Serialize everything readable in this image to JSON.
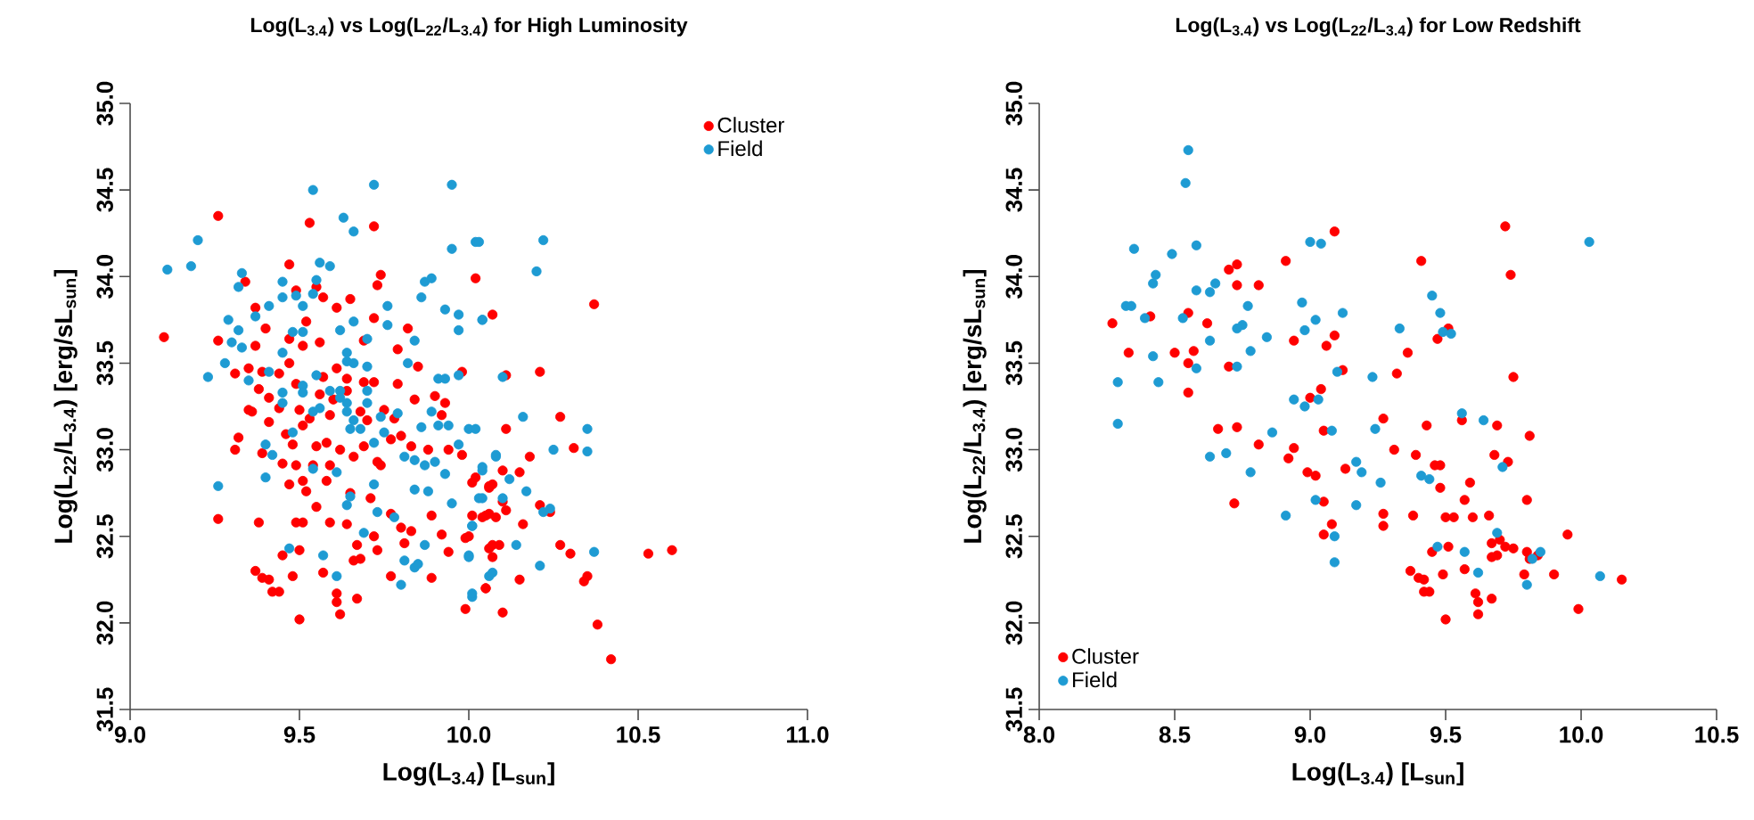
{
  "chart_data": [
    {
      "type": "scatter",
      "title": "Log(L$_{3.4}$) vs Log(L$_{22}$/L$_{3.4}$) for High Luminosity",
      "xlabel": "Log(L$_{3.4}$) [L$_{sun}$]",
      "ylabel": "Log(L$_{22}$/L$_{3.4}$) [erg/sL$_{sun}$]",
      "legend": "top right",
      "marker": "circle",
      "xlim": [
        9.0,
        11.0
      ],
      "ylim": [
        31.5,
        35.0
      ],
      "xticks": [
        {
          "value": 9.0,
          "label": "9.0"
        },
        {
          "value": 9.5,
          "label": "9.5"
        },
        {
          "value": 10.0,
          "label": "10.0"
        },
        {
          "value": 10.5,
          "label": "10.5"
        },
        {
          "value": 11.0,
          "label": "11.0"
        }
      ],
      "yticks": [
        {
          "value": 31.5,
          "label": "31.5"
        },
        {
          "value": 32.0,
          "label": "32.0"
        },
        {
          "value": 32.5,
          "label": "32.5"
        },
        {
          "value": 33.0,
          "label": "33.0"
        },
        {
          "value": 33.5,
          "label": "33.5"
        },
        {
          "value": 34.0,
          "label": "34.0"
        },
        {
          "value": 34.5,
          "label": "34.5"
        },
        {
          "value": 35.0,
          "label": "35.0"
        }
      ],
      "series": [
        {
          "name": "Cluster",
          "color": "#ff0000",
          "x": [
            9.26,
            9.1,
            9.53,
            9.72,
            9.47,
            9.74,
            9.34,
            9.73,
            9.49,
            9.55,
            9.65,
            9.57,
            9.37,
            9.61,
            9.52,
            9.4,
            9.26,
            9.72,
            10.02,
            10.07,
            9.98,
            9.47,
            9.51,
            9.56,
            9.69,
            9.79,
            9.82,
            9.37,
            9.31,
            9.35,
            9.39,
            9.44,
            9.47,
            9.38,
            9.41,
            9.49,
            9.57,
            9.61,
            9.64,
            9.56,
            9.6,
            9.64,
            9.69,
            9.72,
            9.79,
            9.84,
            9.9,
            9.92,
            9.93,
            9.85,
            9.35,
            9.36,
            9.44,
            9.5,
            9.53,
            9.59,
            9.68,
            9.7,
            9.75,
            9.78,
            9.32,
            9.31,
            9.39,
            9.41,
            9.46,
            9.48,
            9.51,
            9.55,
            9.58,
            9.62,
            9.66,
            9.69,
            9.73,
            9.77,
            9.8,
            9.83,
            9.88,
            9.94,
            9.98,
            9.45,
            9.49,
            9.54,
            9.59,
            9.51,
            9.47,
            9.58,
            9.52,
            9.55,
            9.59,
            9.64,
            9.65,
            9.71,
            9.74,
            9.77,
            9.8,
            9.83,
            9.89,
            9.92,
            9.94,
            9.99,
            10.01,
            10.06,
            10.05,
            10.07,
            10.05,
            9.99,
            9.81,
            9.77,
            9.89,
            9.26,
            9.38,
            9.49,
            9.51,
            9.45,
            9.5,
            9.67,
            9.72,
            9.73,
            9.66,
            9.68,
            9.37,
            9.39,
            9.41,
            9.42,
            9.44,
            9.48,
            9.57,
            9.61,
            9.61,
            9.62,
            9.67,
            9.5,
            10.37,
            10.11,
            10.21,
            10.27,
            10.11,
            10.31,
            10.18,
            10.15,
            10.1,
            10.02,
            10.06,
            10.07,
            10.1,
            10.11,
            10.01,
            10.04,
            10.06,
            10.08,
            10.21,
            10.24,
            10.16,
            10.0,
            10.06,
            10.09,
            10.07,
            10.27,
            10.3,
            10.15,
            10.35,
            10.34,
            10.05,
            10.1,
            10.53,
            10.6,
            10.38,
            10.42
          ],
          "values": [
            34.35,
            33.65,
            34.31,
            34.29,
            34.07,
            34.01,
            33.97,
            33.95,
            33.92,
            33.94,
            33.87,
            33.88,
            33.82,
            33.82,
            33.74,
            33.7,
            33.63,
            33.76,
            33.99,
            33.78,
            33.45,
            33.64,
            33.6,
            33.62,
            33.63,
            33.58,
            33.7,
            33.6,
            33.44,
            33.47,
            33.45,
            33.44,
            33.5,
            33.35,
            33.3,
            33.38,
            33.42,
            33.47,
            33.41,
            33.32,
            33.29,
            33.34,
            33.39,
            33.39,
            33.38,
            33.29,
            33.31,
            33.2,
            33.27,
            33.48,
            33.23,
            33.22,
            33.24,
            33.23,
            33.18,
            33.2,
            33.22,
            33.17,
            33.23,
            33.18,
            33.07,
            33.0,
            32.98,
            33.16,
            33.09,
            33.03,
            33.14,
            33.02,
            33.04,
            33.0,
            32.96,
            33.02,
            32.93,
            33.06,
            33.08,
            33.02,
            33.0,
            33.0,
            32.97,
            32.92,
            32.91,
            32.91,
            32.91,
            32.82,
            32.8,
            32.82,
            32.76,
            32.67,
            32.58,
            32.57,
            32.75,
            32.72,
            32.91,
            32.63,
            32.55,
            32.53,
            32.62,
            32.51,
            32.41,
            32.49,
            32.81,
            32.78,
            32.62,
            32.45,
            32.2,
            32.08,
            32.46,
            32.27,
            32.26,
            32.6,
            32.58,
            32.58,
            32.58,
            32.39,
            32.42,
            32.45,
            32.5,
            32.42,
            32.36,
            32.37,
            32.3,
            32.26,
            32.25,
            32.18,
            32.18,
            32.27,
            32.29,
            32.17,
            32.12,
            32.05,
            32.14,
            32.02,
            33.84,
            33.43,
            33.45,
            33.19,
            33.12,
            33.01,
            32.96,
            32.87,
            32.88,
            32.84,
            32.79,
            32.8,
            32.7,
            32.65,
            32.62,
            32.61,
            32.63,
            32.61,
            32.68,
            32.64,
            32.57,
            32.5,
            32.43,
            32.45,
            32.38,
            32.45,
            32.4,
            32.25,
            32.27,
            32.24,
            32.2,
            32.06,
            32.4,
            32.42,
            31.99,
            31.79
          ]
        },
        {
          "name": "Field",
          "color": "#1e9bd3",
          "x": [
            9.54,
            9.72,
            9.95,
            9.63,
            9.66,
            9.95,
            10.02,
            9.2,
            9.11,
            9.18,
            9.33,
            9.32,
            9.45,
            9.56,
            9.59,
            9.55,
            9.45,
            9.49,
            9.54,
            9.51,
            9.41,
            9.37,
            9.29,
            9.32,
            9.3,
            9.33,
            9.28,
            9.23,
            9.35,
            9.41,
            9.45,
            9.48,
            9.51,
            9.62,
            9.66,
            9.76,
            9.76,
            9.86,
            9.87,
            9.89,
            9.93,
            9.97,
            9.97,
            10.04,
            9.7,
            9.64,
            9.64,
            9.66,
            9.7,
            9.55,
            9.51,
            9.51,
            9.45,
            9.45,
            9.59,
            9.62,
            9.62,
            9.64,
            9.54,
            9.56,
            9.64,
            9.66,
            9.68,
            9.65,
            9.7,
            9.7,
            9.74,
            9.75,
            9.79,
            9.82,
            9.84,
            9.89,
            9.91,
            9.93,
            9.91,
            9.94,
            9.97,
            9.86,
            9.48,
            9.4,
            9.42,
            9.4,
            9.72,
            9.81,
            9.84,
            9.87,
            9.9,
            9.93,
            9.97,
            9.84,
            9.88,
            9.61,
            9.54,
            9.26,
            9.72,
            9.65,
            9.64,
            9.73,
            9.78,
            9.69,
            9.87,
            9.81,
            9.84,
            9.85,
            9.8,
            9.95,
            10.0,
            10.01,
            10.0,
            10.06,
            10.01,
            9.47,
            9.57,
            9.61,
            10.04,
            10.08,
            10.03,
            10.22,
            10.2,
            10.04,
            10.1,
            10.16,
            10.02,
            10.35,
            10.25,
            10.35,
            10.08,
            10.04,
            10.12,
            10.17,
            10.03,
            10.04,
            10.1,
            10.22,
            10.24,
            10.01,
            10.14,
            10.37,
            10.0,
            10.21,
            10.07,
            10.01
          ],
          "values": [
            34.5,
            34.53,
            34.53,
            34.34,
            34.26,
            34.16,
            34.2,
            34.21,
            34.04,
            34.06,
            34.02,
            33.94,
            33.97,
            34.08,
            34.06,
            33.98,
            33.88,
            33.89,
            33.9,
            33.83,
            33.83,
            33.77,
            33.75,
            33.69,
            33.62,
            33.59,
            33.5,
            33.42,
            33.4,
            33.45,
            33.56,
            33.68,
            33.68,
            33.69,
            33.74,
            33.83,
            33.72,
            33.88,
            33.97,
            33.99,
            33.81,
            33.78,
            33.69,
            33.75,
            33.64,
            33.56,
            33.51,
            33.5,
            33.48,
            33.43,
            33.37,
            33.33,
            33.33,
            33.27,
            33.34,
            33.34,
            33.3,
            33.27,
            33.22,
            33.24,
            33.22,
            33.17,
            33.12,
            33.12,
            33.27,
            33.34,
            33.19,
            33.1,
            33.21,
            33.5,
            33.63,
            33.22,
            33.41,
            33.41,
            33.14,
            33.14,
            33.43,
            33.13,
            33.1,
            33.03,
            32.97,
            32.84,
            33.04,
            32.96,
            32.94,
            32.91,
            32.93,
            32.86,
            33.03,
            32.77,
            32.76,
            32.87,
            32.89,
            32.79,
            32.8,
            32.73,
            32.68,
            32.64,
            32.61,
            32.52,
            32.45,
            32.36,
            32.32,
            32.34,
            32.22,
            32.69,
            33.12,
            32.56,
            32.39,
            32.27,
            32.15,
            32.43,
            32.39,
            32.27,
            32.88,
            32.96,
            34.2,
            34.21,
            34.03,
            33.75,
            33.42,
            33.19,
            33.12,
            33.12,
            33.0,
            32.99,
            32.97,
            32.9,
            32.83,
            32.76,
            32.72,
            32.72,
            32.72,
            32.64,
            32.66,
            32.56,
            32.45,
            32.41,
            32.38,
            32.33,
            32.29,
            32.17
          ]
        }
      ]
    },
    {
      "type": "scatter",
      "title": "Log(L$_{3.4}$) vs Log(L$_{22}$/L$_{3.4}$) for Low Redshift",
      "xlabel": "Log(L$_{3.4}$) [L$_{sun}$]",
      "ylabel": "Log(L$_{22}$/L$_{3.4}$) [erg/sL$_{sun}$]",
      "legend": "bottom left",
      "marker": "circle",
      "xlim": [
        8.0,
        10.5
      ],
      "ylim": [
        31.5,
        35.0
      ],
      "xticks": [
        {
          "value": 8.0,
          "label": "8.0"
        },
        {
          "value": 8.5,
          "label": "8.5"
        },
        {
          "value": 9.0,
          "label": "9.0"
        },
        {
          "value": 9.5,
          "label": "9.5"
        },
        {
          "value": 10.0,
          "label": "10.0"
        },
        {
          "value": 10.5,
          "label": "10.5"
        }
      ],
      "yticks": [
        {
          "value": 31.5,
          "label": "31.5"
        },
        {
          "value": 32.0,
          "label": "32.0"
        },
        {
          "value": 32.5,
          "label": "32.5"
        },
        {
          "value": 33.0,
          "label": "33.0"
        },
        {
          "value": 33.5,
          "label": "33.5"
        },
        {
          "value": 34.0,
          "label": "34.0"
        },
        {
          "value": 34.5,
          "label": "34.5"
        },
        {
          "value": 35.0,
          "label": "35.0"
        }
      ],
      "series": [
        {
          "name": "Cluster",
          "color": "#ff0000",
          "x": [
            8.27,
            8.33,
            8.41,
            8.5,
            8.55,
            8.55,
            8.57,
            8.55,
            8.62,
            8.66,
            8.7,
            8.7,
            8.73,
            8.73,
            8.73,
            8.72,
            8.81,
            8.81,
            8.91,
            8.94,
            8.92,
            8.94,
            8.99,
            9.0,
            9.02,
            9.04,
            9.05,
            9.05,
            9.05,
            9.06,
            9.09,
            9.09,
            9.08,
            9.72,
            9.41,
            9.74,
            9.36,
            9.32,
            9.12,
            9.51,
            9.47,
            9.75,
            9.27,
            9.43,
            9.56,
            9.69,
            9.81,
            9.31,
            9.39,
            9.46,
            9.48,
            9.68,
            9.73,
            9.13,
            9.48,
            9.59,
            9.27,
            9.27,
            9.38,
            9.5,
            9.53,
            9.6,
            9.66,
            9.57,
            9.8,
            9.45,
            9.51,
            9.67,
            9.7,
            9.72,
            9.75,
            9.67,
            9.69,
            9.8,
            9.81,
            9.84,
            9.95,
            9.9,
            9.79,
            9.57,
            9.49,
            9.37,
            9.4,
            9.42,
            9.42,
            9.44,
            9.61,
            9.62,
            9.62,
            9.67,
            9.5,
            9.99,
            10.15
          ],
          "values": [
            33.73,
            33.56,
            33.77,
            33.56,
            33.79,
            33.5,
            33.57,
            33.33,
            33.73,
            33.12,
            33.48,
            34.04,
            34.07,
            33.95,
            33.13,
            32.69,
            33.03,
            33.95,
            34.09,
            33.63,
            32.95,
            33.01,
            32.87,
            33.3,
            32.85,
            33.35,
            32.7,
            33.11,
            32.51,
            33.6,
            34.26,
            33.66,
            32.57,
            34.29,
            34.09,
            34.01,
            33.56,
            33.44,
            33.46,
            33.7,
            33.64,
            33.42,
            33.18,
            33.14,
            33.17,
            33.14,
            33.08,
            33.0,
            32.97,
            32.91,
            32.91,
            32.97,
            32.93,
            32.89,
            32.78,
            32.81,
            32.63,
            32.56,
            32.62,
            32.61,
            32.61,
            32.61,
            32.62,
            32.71,
            32.71,
            32.41,
            32.44,
            32.46,
            32.48,
            32.44,
            32.43,
            32.38,
            32.39,
            32.41,
            32.37,
            32.39,
            32.51,
            32.28,
            32.28,
            32.31,
            32.28,
            32.3,
            32.26,
            32.25,
            32.18,
            32.18,
            32.17,
            32.12,
            32.05,
            32.14,
            32.02,
            32.08,
            32.25
          ]
        },
        {
          "name": "Field",
          "color": "#1e9bd3",
          "x": [
            8.55,
            8.54,
            8.35,
            8.49,
            8.58,
            8.43,
            8.42,
            8.32,
            8.34,
            8.39,
            8.53,
            8.58,
            8.65,
            8.63,
            8.75,
            8.73,
            8.77,
            8.29,
            8.29,
            8.42,
            8.44,
            8.58,
            8.63,
            8.73,
            8.78,
            8.84,
            8.86,
            8.63,
            8.69,
            8.78,
            8.91,
            8.94,
            8.98,
            8.97,
            8.98,
            9.02,
            9.0,
            9.04,
            9.03,
            9.02,
            9.08,
            9.09,
            9.09,
            10.03,
            9.45,
            9.48,
            9.49,
            9.52,
            9.12,
            9.33,
            9.23,
            9.1,
            9.24,
            9.56,
            9.64,
            9.17,
            9.19,
            9.26,
            9.41,
            9.44,
            9.71,
            9.17,
            9.69,
            9.47,
            9.57,
            9.62,
            9.82,
            9.85,
            9.8,
            10.07
          ],
          "values": [
            34.73,
            34.54,
            34.16,
            34.13,
            34.18,
            34.01,
            33.96,
            33.83,
            33.83,
            33.76,
            33.76,
            33.92,
            33.96,
            33.91,
            33.72,
            33.7,
            33.83,
            33.39,
            33.15,
            33.54,
            33.39,
            33.47,
            33.63,
            33.48,
            33.57,
            33.65,
            33.1,
            32.96,
            32.98,
            32.87,
            32.62,
            33.29,
            33.25,
            33.85,
            33.69,
            33.75,
            34.2,
            34.19,
            33.29,
            32.71,
            33.11,
            32.35,
            32.5,
            34.2,
            33.89,
            33.79,
            33.68,
            33.67,
            33.79,
            33.7,
            33.42,
            33.45,
            33.12,
            33.21,
            33.17,
            32.93,
            32.87,
            32.81,
            32.85,
            32.83,
            32.9,
            32.68,
            32.52,
            32.44,
            32.41,
            32.29,
            32.37,
            32.41,
            32.22,
            32.27
          ]
        }
      ]
    }
  ]
}
